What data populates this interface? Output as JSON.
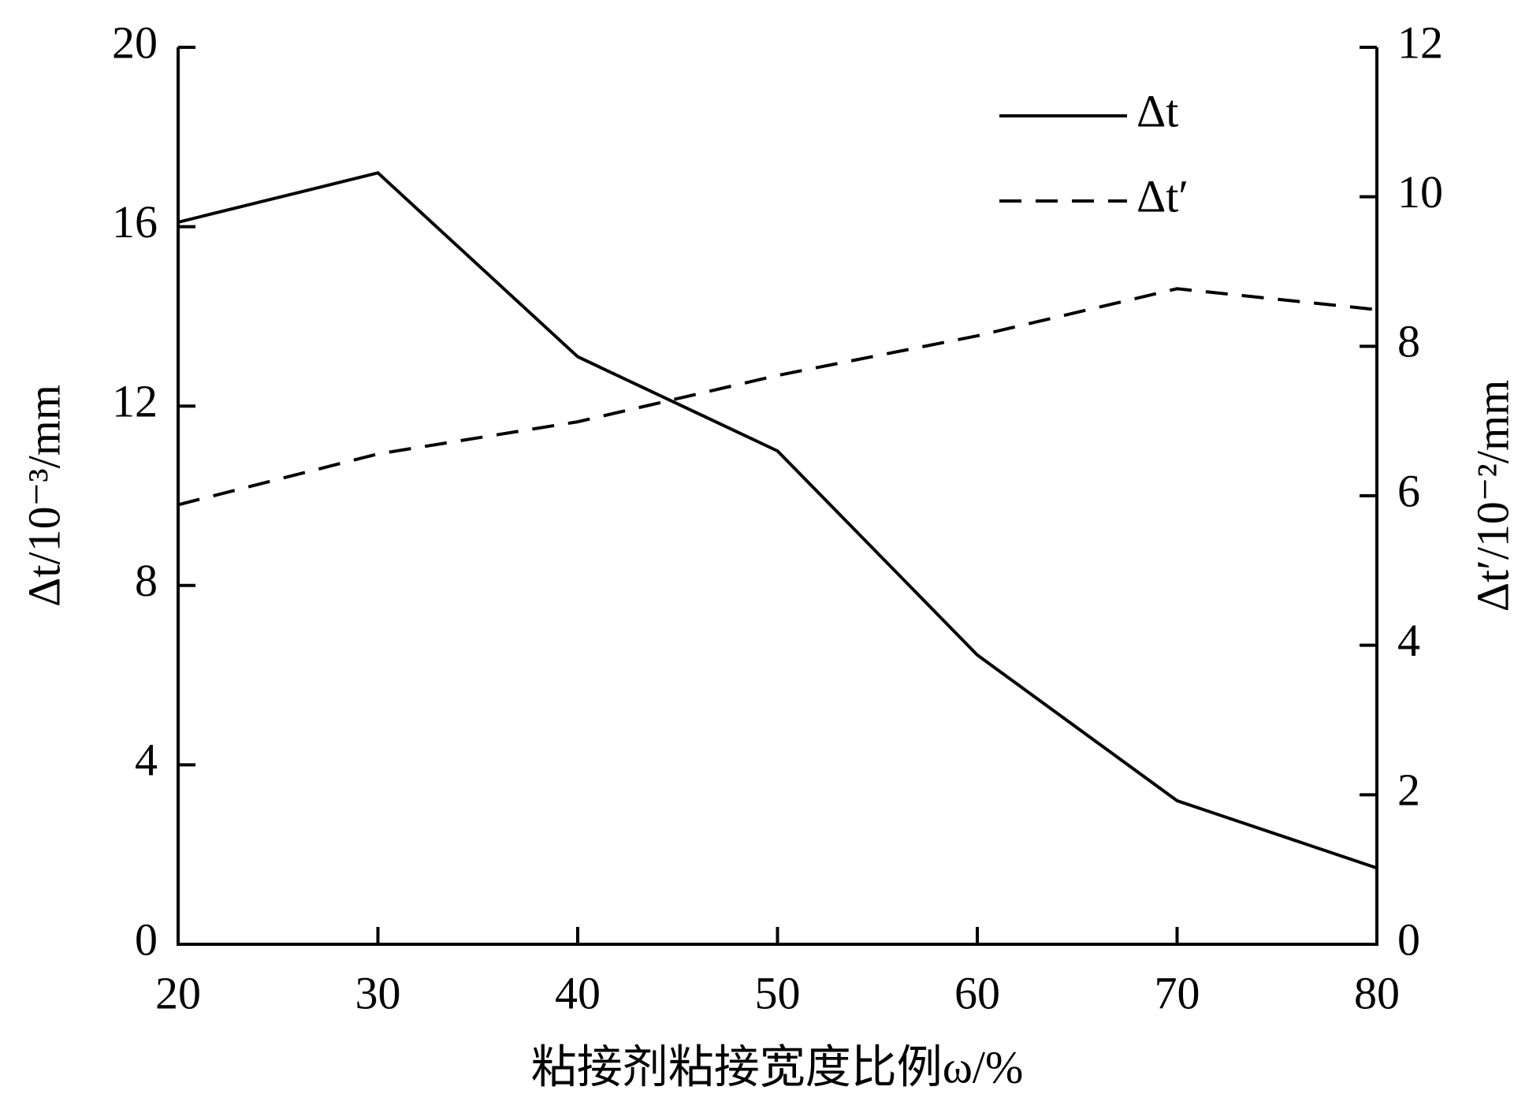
{
  "chart_data": {
    "type": "line",
    "x_label": "粘接剂粘接宽度比例ω/%",
    "y_label": "Δt/10⁻³/mm",
    "y2_label": "Δt′/10⁻²/mm",
    "x": [
      20,
      30,
      40,
      50,
      60,
      70,
      80
    ],
    "xlim": [
      20,
      80
    ],
    "xticks": [
      20,
      30,
      40,
      50,
      60,
      70,
      80
    ],
    "ylim": [
      0,
      20
    ],
    "yticks": [
      0,
      4,
      8,
      12,
      16,
      20
    ],
    "y2lim": [
      0,
      12
    ],
    "y2ticks": [
      0,
      2,
      4,
      6,
      8,
      10,
      12
    ],
    "legend": "upper right",
    "series": [
      {
        "name": "Δt",
        "color": "#000000",
        "dash": "solid",
        "values": [
          16.1,
          17.2,
          13.1,
          11.0,
          6.45,
          3.2,
          1.7
        ]
      },
      {
        "name": "Δt′",
        "color": "#000000",
        "dash": "dashed",
        "axis": "y2",
        "values": [
          5.88,
          6.56,
          6.99,
          7.61,
          8.14,
          8.77,
          8.49
        ]
      }
    ]
  }
}
